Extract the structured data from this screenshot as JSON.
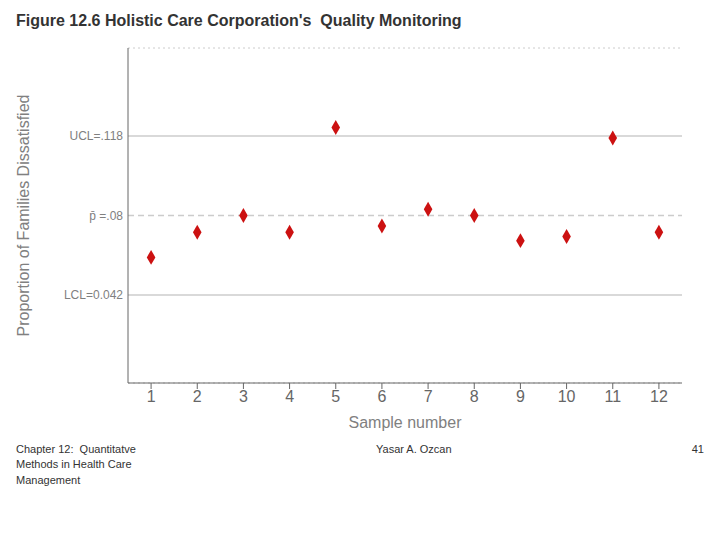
{
  "chart_data": {
    "type": "scatter",
    "title": "Figure 12.6 Holistic Care Corporation's  Quality Monitoring",
    "xlabel": "Sample number",
    "ylabel": "Proportion of Families Dissatisfied",
    "x": [
      1,
      2,
      3,
      4,
      5,
      6,
      7,
      8,
      9,
      10,
      11,
      12
    ],
    "values": [
      0.06,
      0.072,
      0.08,
      0.072,
      0.122,
      0.075,
      0.083,
      0.08,
      0.068,
      0.07,
      0.117,
      0.072
    ],
    "color": "#cc1111",
    "marker": "diamond",
    "xlim": [
      0.5,
      12.5
    ],
    "xticks": [
      1,
      2,
      3,
      4,
      5,
      6,
      7,
      8,
      9,
      10,
      11,
      12
    ],
    "ylim": [
      0.0,
      0.16
    ],
    "yticks": [
      0.02,
      0.04,
      0.06,
      0.1,
      0.12,
      0.14
    ],
    "grid": true,
    "tick_labels": "x",
    "annotations": [
      {
        "text": "UCL=.118",
        "y": 0.118,
        "line_style": "solid"
      },
      {
        "text": "p̄ =.08",
        "y": 0.08,
        "line_style": "dashed"
      },
      {
        "text": "LCL=0.042",
        "y": 0.042,
        "line_style": "solid"
      }
    ],
    "footer": [
      "Chapter 12:  Quantitatve\nMethods in Health Care\nManagement",
      "Yasar A. Ozcan",
      "41"
    ]
  }
}
